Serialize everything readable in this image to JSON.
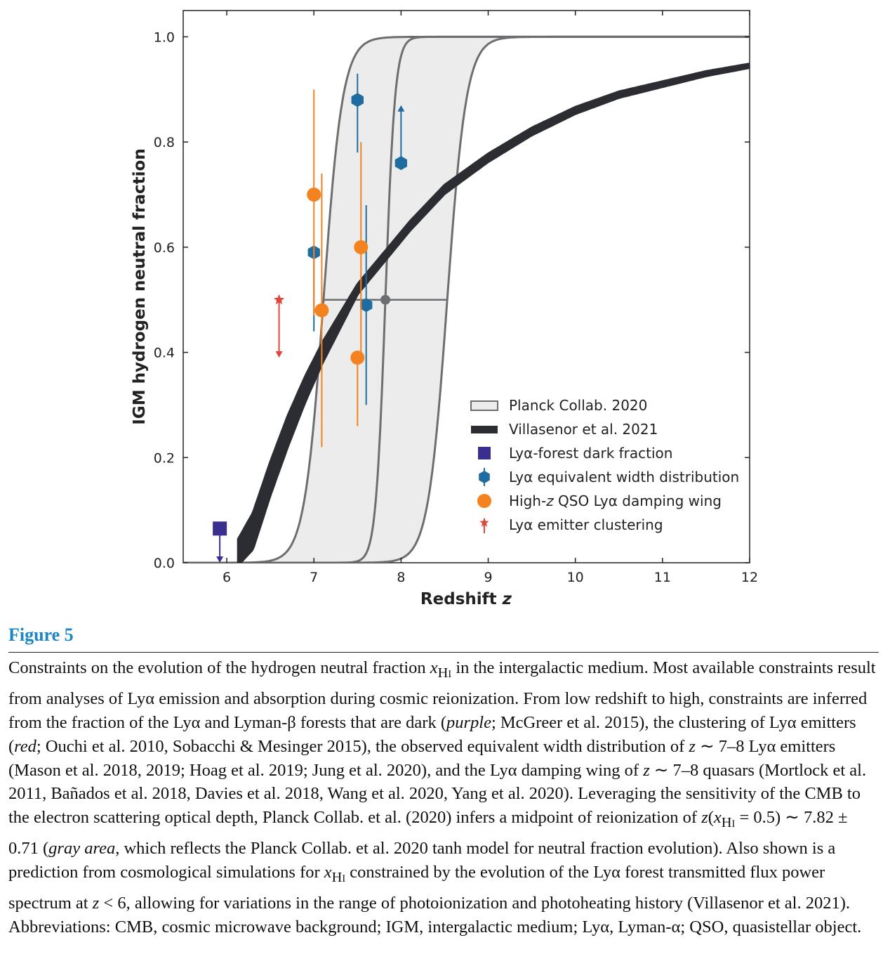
{
  "chart_data": {
    "type": "line",
    "xlabel": "Redshift",
    "xlabel_var": "z",
    "ylabel": "IGM hydrogen neutral fraction",
    "xlim": [
      5.5,
      12
    ],
    "ylim": [
      0,
      1.05
    ],
    "x_ticks": [
      "6",
      "7",
      "8",
      "9",
      "10",
      "11",
      "12"
    ],
    "y_ticks": [
      "0.0",
      "0.2",
      "0.4",
      "0.6",
      "0.8",
      "1.0"
    ],
    "grid": false,
    "legend_position": "lower-right",
    "legend": [
      {
        "label": "Planck Collab. 2020",
        "marker": "gray-box"
      },
      {
        "label": "Villasenor et al. 2021",
        "marker": "black-band"
      },
      {
        "label": "Lyα-forest dark fraction",
        "marker": "purple-square"
      },
      {
        "label": "Lyα equivalent width distribution",
        "marker": "blue-hexagon"
      },
      {
        "label_pre": "High-",
        "label_var": "z",
        "label_post": " QSO Lyα damping wing",
        "marker": "orange-circle"
      },
      {
        "label": "Lyα emitter clustering",
        "marker": "red-star"
      }
    ],
    "planck": {
      "model": "tanh",
      "midpoint": 7.82,
      "midpoint_err": 0.71,
      "band_low": 7.11,
      "band_high": 8.53,
      "x_start": 5.5,
      "x_end": 12
    },
    "villasenor": {
      "x_start": 6.13,
      "x_end": 12,
      "points": [
        [
          6.13,
          0.02
        ],
        [
          6.3,
          0.06
        ],
        [
          6.5,
          0.16
        ],
        [
          6.7,
          0.25
        ],
        [
          6.9,
          0.33
        ],
        [
          7.1,
          0.4
        ],
        [
          7.3,
          0.46
        ],
        [
          7.5,
          0.52
        ],
        [
          7.8,
          0.58
        ],
        [
          8.1,
          0.64
        ],
        [
          8.5,
          0.71
        ],
        [
          9.0,
          0.77
        ],
        [
          9.5,
          0.82
        ],
        [
          10.0,
          0.86
        ],
        [
          10.5,
          0.89
        ],
        [
          11.0,
          0.91
        ],
        [
          11.5,
          0.93
        ],
        [
          12.0,
          0.945
        ]
      ],
      "width": [
        [
          6.13,
          0.025
        ],
        [
          6.3,
          0.035
        ],
        [
          6.7,
          0.03
        ],
        [
          7.5,
          0.01
        ],
        [
          12.0,
          0.004
        ]
      ]
    },
    "series": [
      {
        "color": "#3a2f8f",
        "marker": "square",
        "points": [
          {
            "x": 5.92,
            "y": 0.065,
            "upper_limit_to": 0.0
          }
        ]
      },
      {
        "color": "#1e6ca0",
        "marker": "hexagon",
        "points": [
          {
            "x": 7.0,
            "y": 0.59,
            "ylow": 0.44,
            "yhigh": 0.59
          },
          {
            "x": 7.5,
            "y": 0.88,
            "ylow": 0.78,
            "yhigh": 0.93
          },
          {
            "x": 7.6,
            "y": 0.49,
            "ylow": 0.3,
            "yhigh": 0.68
          },
          {
            "x": 8.0,
            "y": 0.76,
            "lower_limit_to": 0.87
          }
        ]
      },
      {
        "color": "#f58220",
        "marker": "circle",
        "points": [
          {
            "x": 7.0,
            "y": 0.7,
            "ylow": 0.47,
            "yhigh": 0.9
          },
          {
            "x": 7.09,
            "y": 0.48,
            "ylow": 0.22,
            "yhigh": 0.74
          },
          {
            "x": 7.5,
            "y": 0.39,
            "ylow": 0.26,
            "yhigh": 0.39
          },
          {
            "x": 7.54,
            "y": 0.6,
            "ylow": 0.39,
            "yhigh": 0.8
          }
        ]
      },
      {
        "color": "#e0463a",
        "marker": "star",
        "points": [
          {
            "x": 6.6,
            "y": 0.5,
            "upper_limit_to": 0.39
          }
        ]
      }
    ],
    "colors": {
      "planck_fill": "#ececec",
      "planck_edge": "#6d6e71",
      "planck_midpoint": "#6d6e71",
      "villasenor": "#2b2d33",
      "purple": "#3a2f8f",
      "blue": "#1e6ca0",
      "orange": "#f58220",
      "red": "#e0463a"
    }
  },
  "figure": {
    "label": "Figure 5"
  },
  "caption": {
    "s1": "Constraints on the evolution of the hydrogen neutral fraction ",
    "xhi": "x",
    "xhi_sub": "H",
    "xhi_roman": "I",
    "s2": " in the intergalactic medium. Most available constraints result from analyses of Lyα emission and absorption during cosmic reionization. From low redshift to high, constraints are inferred from the fraction of the Lyα and Lyman-β forests that are dark (",
    "purple": "purple",
    "s3": "; McGreer et al. 2015), the clustering of Lyα emitters (",
    "red": "red",
    "s4": "; Ouchi et al. 2010, Sobacchi & Mesinger 2015), the observed equivalent width distribution of ",
    "z1": "z",
    "s5": " ∼ 7–8 Lyα emitters (Mason et al. 2018, 2019; Hoag et al. 2019; Jung et al. 2020), and the Lyα damping wing of ",
    "z2": "z",
    "s6": " ∼ 7–8 quasars (Mortlock et al. 2011, Bañados et al. 2018, Davies et al. 2018, Wang et al. 2020, Yang et al. 2020). Leveraging the sensitivity of the CMB to the electron scattering optical depth, Planck Collab. et al. (2020) infers a midpoint of reionization of ",
    "z3": "z",
    "s7": "(",
    "s8": " = 0.5) ∼ 7.82 ± 0.71 (",
    "gray_area": "gray area",
    "s9": ", which reflects the Planck Collab. et al. 2020 tanh  model for neutral fraction evolution). Also shown is a prediction from cosmological simulations for ",
    "s10": " constrained by the evolution of the Lyα forest transmitted flux power spectrum at ",
    "z4": "z",
    "s11": " < 6, allowing for variations in the range of photoionization and photoheating history (Villasenor et al. 2021). Abbreviations: CMB, cosmic microwave background; IGM, intergalactic medium; Lyα, Lyman-α; QSO, quasistellar object."
  }
}
